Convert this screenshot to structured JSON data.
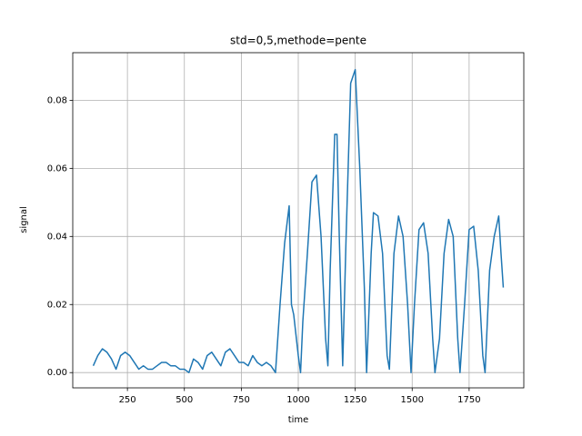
{
  "chart_data": {
    "type": "line",
    "title": "std=0,5,methode=pente",
    "x_label": "time",
    "y_label": "signal",
    "x": [
      100,
      120,
      140,
      160,
      180,
      200,
      220,
      240,
      260,
      280,
      300,
      320,
      340,
      360,
      380,
      400,
      420,
      440,
      460,
      480,
      500,
      520,
      540,
      560,
      580,
      600,
      620,
      640,
      660,
      680,
      700,
      720,
      740,
      760,
      780,
      800,
      820,
      840,
      860,
      880,
      900,
      920,
      940,
      960,
      970,
      980,
      1000,
      1010,
      1020,
      1040,
      1060,
      1080,
      1100,
      1120,
      1130,
      1140,
      1160,
      1170,
      1180,
      1195,
      1210,
      1230,
      1250,
      1270,
      1290,
      1300,
      1320,
      1330,
      1350,
      1370,
      1390,
      1400,
      1420,
      1440,
      1460,
      1480,
      1495,
      1510,
      1530,
      1550,
      1570,
      1590,
      1600,
      1620,
      1640,
      1660,
      1680,
      1700,
      1710,
      1730,
      1750,
      1770,
      1790,
      1810,
      1820,
      1840,
      1860,
      1880,
      1890,
      1900
    ],
    "series": [
      {
        "color": "#1f77b4",
        "values": [
          0.002,
          0.005,
          0.007,
          0.006,
          0.004,
          0.001,
          0.005,
          0.006,
          0.005,
          0.003,
          0.001,
          0.002,
          0.001,
          0.001,
          0.002,
          0.003,
          0.003,
          0.002,
          0.002,
          0.001,
          0.001,
          0.0,
          0.004,
          0.003,
          0.001,
          0.005,
          0.006,
          0.004,
          0.002,
          0.006,
          0.007,
          0.005,
          0.003,
          0.003,
          0.002,
          0.005,
          0.003,
          0.002,
          0.003,
          0.002,
          0.0,
          0.02,
          0.038,
          0.049,
          0.02,
          0.017,
          0.005,
          0.0,
          0.015,
          0.035,
          0.056,
          0.058,
          0.04,
          0.01,
          0.002,
          0.03,
          0.07,
          0.07,
          0.04,
          0.002,
          0.04,
          0.085,
          0.089,
          0.06,
          0.025,
          0.0,
          0.035,
          0.047,
          0.046,
          0.035,
          0.005,
          0.001,
          0.035,
          0.046,
          0.04,
          0.02,
          0.0,
          0.02,
          0.042,
          0.044,
          0.035,
          0.01,
          0.0,
          0.01,
          0.035,
          0.045,
          0.04,
          0.01,
          0.0,
          0.02,
          0.042,
          0.043,
          0.03,
          0.005,
          0.0,
          0.03,
          0.04,
          0.046,
          0.035,
          0.025
        ]
      }
    ],
    "xlim": [
      10,
      1990
    ],
    "xticks": [
      250,
      500,
      750,
      1000,
      1250,
      1500,
      1750
    ],
    "ylim": [
      -0.00448,
      0.09398
    ],
    "yticks": [
      {
        "value": 0,
        "label": "0.00"
      },
      0.02,
      0.04,
      0.06,
      0.08
    ],
    "grid": true
  }
}
